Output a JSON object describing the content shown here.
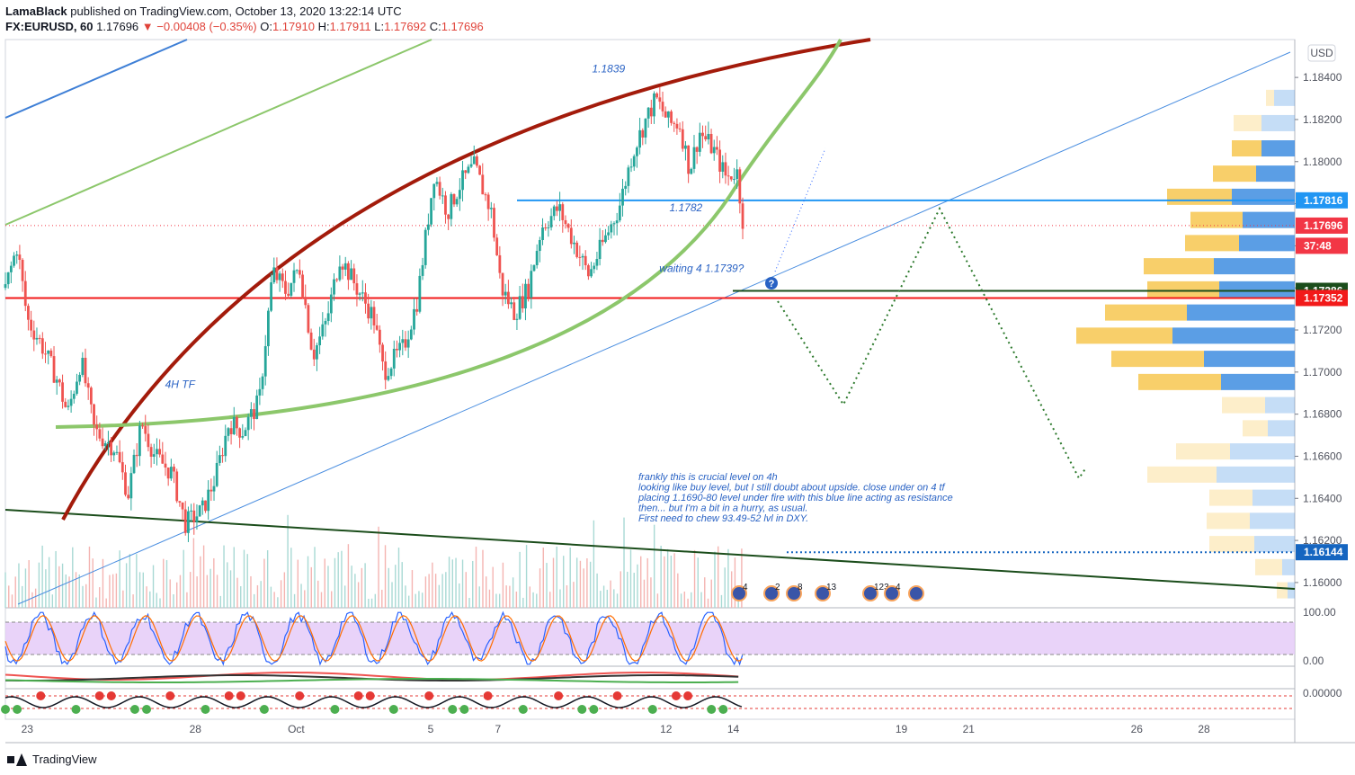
{
  "header": {
    "author": "LamaBlack",
    "published": "published on TradingView.com, October 13, 2020 13:22:14 UTC",
    "symbol": "FX:EURUSD, 60",
    "last": "1.17696",
    "change": "−0.00408 (−0.35%)",
    "o_label": "O:",
    "o": "1.17910",
    "h_label": "H:",
    "h": "1.17911",
    "l_label": "L:",
    "l": "1.17692",
    "c_label": "C:",
    "c": "1.17696"
  },
  "footer": {
    "brand": "TradingView"
  },
  "colors": {
    "up": "#26a69a",
    "down": "#ef5350",
    "bear_arc": "#a31b0b",
    "green_arc": "#8cc76b",
    "blue_level": "#2196f3",
    "red_level": "#f21a1a",
    "dark_level": "#1b4d1b",
    "dotted_path": "#2d7a2d",
    "vp_yellow": "#f7c750",
    "vp_blue": "#3e8de0"
  },
  "chart_data": {
    "type": "candlestick",
    "currency": "USD",
    "y_ticks": [
      "1.18400",
      "1.18200",
      "1.18000",
      "1.17800",
      "1.17600",
      "1.17400",
      "1.17200",
      "1.17000",
      "1.16800",
      "1.16600",
      "1.16400",
      "1.16200",
      "1.16000"
    ],
    "ylim": [
      1.1588,
      1.1858
    ],
    "x_ticks": [
      {
        "label": "23",
        "day": 0
      },
      {
        "label": "28",
        "day": 5
      },
      {
        "label": "Oct",
        "day": 8
      },
      {
        "label": "5",
        "day": 12
      },
      {
        "label": "7",
        "day": 14
      },
      {
        "label": "12",
        "day": 19
      },
      {
        "label": "14",
        "day": 21
      },
      {
        "label": "19",
        "day": 26
      },
      {
        "label": "21",
        "day": 28
      },
      {
        "label": "26",
        "day": 33
      },
      {
        "label": "28",
        "day": 35
      }
    ],
    "xlim": [
      -0.65,
      37.7
    ],
    "price_tags": [
      {
        "label": "1.17816",
        "value": 1.17816,
        "color": "#2196f3"
      },
      {
        "label": "1.17696",
        "value": 1.17696,
        "color": "#f23645"
      },
      {
        "label": "37:48",
        "value": 1.176,
        "color": "#f23645"
      },
      {
        "label": "1.17386",
        "value": 1.17386,
        "color": "#1b4d1b"
      },
      {
        "label": "1.17352",
        "value": 1.17352,
        "color": "#f21a1a"
      },
      {
        "label": "1.16144",
        "value": 1.16144,
        "color": "#1565c0"
      }
    ],
    "price_path": [
      [
        -0.65,
        1.174
      ],
      [
        -0.3,
        1.176
      ],
      [
        0,
        1.1725
      ],
      [
        0.4,
        1.1714
      ],
      [
        0.9,
        1.1696
      ],
      [
        1.2,
        1.168
      ],
      [
        1.6,
        1.1706
      ],
      [
        2.0,
        1.1672
      ],
      [
        2.6,
        1.1664
      ],
      [
        3.0,
        1.1642
      ],
      [
        3.4,
        1.1676
      ],
      [
        3.8,
        1.166
      ],
      [
        4.3,
        1.1652
      ],
      [
        4.7,
        1.1628
      ],
      [
        5.2,
        1.1634
      ],
      [
        5.6,
        1.165
      ],
      [
        6.0,
        1.1676
      ],
      [
        6.4,
        1.1672
      ],
      [
        6.9,
        1.1686
      ],
      [
        7.3,
        1.1748
      ],
      [
        7.7,
        1.1738
      ],
      [
        8.1,
        1.175
      ],
      [
        8.5,
        1.1708
      ],
      [
        8.9,
        1.1724
      ],
      [
        9.3,
        1.1755
      ],
      [
        9.8,
        1.174
      ],
      [
        10.3,
        1.1726
      ],
      [
        10.6,
        1.17
      ],
      [
        11.2,
        1.1712
      ],
      [
        11.6,
        1.1734
      ],
      [
        12.1,
        1.1794
      ],
      [
        12.5,
        1.1776
      ],
      [
        12.9,
        1.179
      ],
      [
        13.3,
        1.1798
      ],
      [
        13.8,
        1.1776
      ],
      [
        14.1,
        1.174
      ],
      [
        14.5,
        1.1728
      ],
      [
        14.9,
        1.174
      ],
      [
        15.3,
        1.1769
      ],
      [
        15.8,
        1.1778
      ],
      [
        16.3,
        1.176
      ],
      [
        16.7,
        1.1746
      ],
      [
        17.2,
        1.1764
      ],
      [
        17.6,
        1.1778
      ],
      [
        18.0,
        1.1804
      ],
      [
        18.4,
        1.182
      ],
      [
        18.7,
        1.183
      ],
      [
        19.1,
        1.1818
      ],
      [
        19.4,
        1.1818
      ],
      [
        19.7,
        1.1796
      ],
      [
        20.0,
        1.1814
      ],
      [
        20.4,
        1.1806
      ],
      [
        20.8,
        1.1792
      ],
      [
        21.1,
        1.1796
      ],
      [
        21.3,
        1.177
      ]
    ],
    "volume_profile": [
      {
        "price": 1.1832,
        "buy": 9,
        "sell": 23
      },
      {
        "price": 1.182,
        "buy": 31,
        "sell": 37
      },
      {
        "price": 1.1808,
        "buy": 33,
        "sell": 37
      },
      {
        "price": 1.1796,
        "buy": 48,
        "sell": 43
      },
      {
        "price": 1.1785,
        "buy": 72,
        "sell": 70
      },
      {
        "price": 1.1774,
        "buy": 58,
        "sell": 58
      },
      {
        "price": 1.1763,
        "buy": 60,
        "sell": 62
      },
      {
        "price": 1.1752,
        "buy": 78,
        "sell": 90
      },
      {
        "price": 1.1741,
        "buy": 80,
        "sell": 84
      },
      {
        "price": 1.173,
        "buy": 91,
        "sell": 120
      },
      {
        "price": 1.1719,
        "buy": 107,
        "sell": 136
      },
      {
        "price": 1.1708,
        "buy": 103,
        "sell": 101
      },
      {
        "price": 1.1697,
        "buy": 92,
        "sell": 82
      },
      {
        "price": 1.1686,
        "buy": 48,
        "sell": 33
      },
      {
        "price": 1.1675,
        "buy": 28,
        "sell": 30
      },
      {
        "price": 1.1664,
        "buy": 60,
        "sell": 72
      },
      {
        "price": 1.1653,
        "buy": 77,
        "sell": 87
      },
      {
        "price": 1.1642,
        "buy": 48,
        "sell": 47
      },
      {
        "price": 1.1631,
        "buy": 48,
        "sell": 50
      },
      {
        "price": 1.162,
        "buy": 50,
        "sell": 45
      },
      {
        "price": 1.1609,
        "buy": 30,
        "sell": 14
      },
      {
        "price": 1.1598,
        "buy": 12,
        "sell": 8
      }
    ],
    "annotations": [
      {
        "text": "1.1839",
        "day": 16.8,
        "price": 1.18425
      },
      {
        "text": "1.1782",
        "day": 19.1,
        "price": 1.17765
      },
      {
        "text": "waiting 4 1.1739?",
        "day": 18.8,
        "price": 1.17475
      },
      {
        "text": "4H TF",
        "day": 4.1,
        "price": 1.16925
      }
    ],
    "comment_lines": [
      "frankly this is crucial level on 4h",
      "looking like buy level, but I still doubt about upside. close under on 4 tf",
      "placing 1.1690-80 level under fire with this blue line acting as resistance",
      "then... but I'm a bit in a hurry, as usual.",
      "First need to chew 93.49-52 lvl in DXY."
    ],
    "levels": {
      "blue": 1.17816,
      "dark": 1.17386,
      "red": 1.17352,
      "dotted_blue": 1.16144
    },
    "event_markers": [
      "4",
      "2",
      "8",
      "13",
      "123",
      "4"
    ],
    "oscillator": {
      "ticks": [
        "100.00",
        "0.00"
      ],
      "range": [
        0,
        100
      ],
      "band": [
        20,
        80
      ]
    },
    "oscillator3": {
      "tick": "0.00000"
    }
  }
}
